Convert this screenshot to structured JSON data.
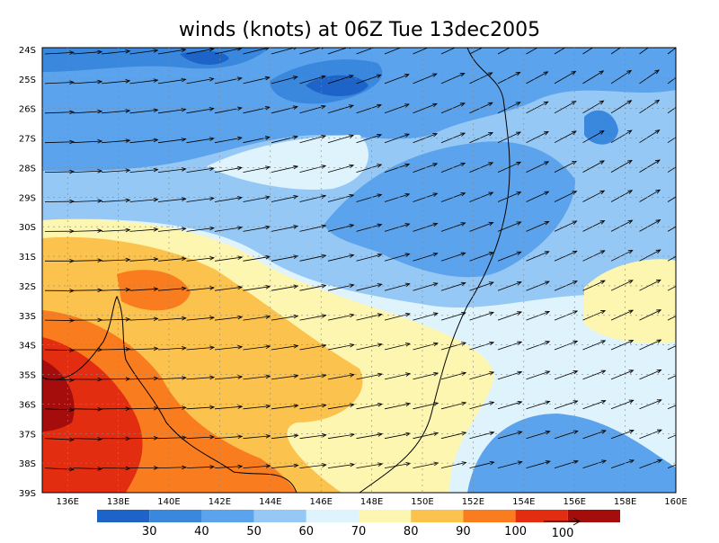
{
  "title": "winds (knots) at 06Z Tue 13dec2005",
  "lat_labels": [
    "24S",
    "25S",
    "26S",
    "27S",
    "28S",
    "29S",
    "30S",
    "31S",
    "32S",
    "33S",
    "34S",
    "35S",
    "36S",
    "37S",
    "38S",
    "39S"
  ],
  "lon_labels": [
    "136E",
    "138E",
    "140E",
    "142E",
    "144E",
    "146E",
    "148E",
    "150E",
    "152E",
    "154E",
    "156E",
    "158E",
    "160E"
  ],
  "colorbar": {
    "labels": [
      "30",
      "40",
      "50",
      "60",
      "70",
      "80",
      "90",
      "100"
    ],
    "colors": [
      "#1e64c8",
      "#3a87de",
      "#5ba3ec",
      "#96c8f5",
      "#dff3fd",
      "#fdf6b0",
      "#fcc24e",
      "#f97d1e",
      "#e32d10",
      "#a50d0d"
    ]
  },
  "reference_vector": "100"
}
